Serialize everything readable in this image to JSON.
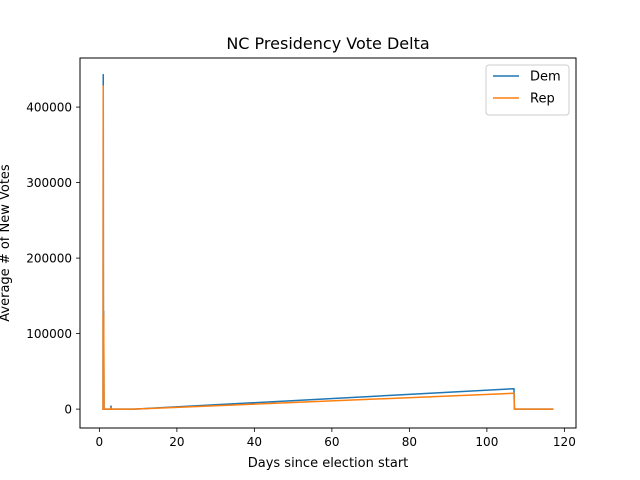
{
  "chart_data": {
    "type": "line",
    "title": "NC Presidency Vote Delta",
    "xlabel": "Days since election start",
    "ylabel": "Average # of New Votes",
    "xlim": [
      -5,
      123
    ],
    "ylim": [
      -25000,
      465000
    ],
    "xticks": [
      0,
      20,
      40,
      60,
      80,
      100,
      120
    ],
    "yticks": [
      0,
      100000,
      200000,
      300000,
      400000
    ],
    "legend_position": "top-right",
    "grid": false,
    "series": [
      {
        "name": "Dem",
        "color": "#1f77b4",
        "points": [
          [
            0.95,
            0
          ],
          [
            1.0,
            443000
          ],
          [
            1.05,
            5000
          ],
          [
            1.1,
            130000
          ],
          [
            1.2,
            0
          ],
          [
            2.0,
            0
          ],
          [
            2.9,
            0
          ],
          [
            3.0,
            4000
          ],
          [
            3.1,
            0
          ],
          [
            4.0,
            0
          ],
          [
            5.5,
            0
          ],
          [
            9.0,
            0
          ],
          [
            107.0,
            27000
          ],
          [
            107.1,
            0
          ],
          [
            117.0,
            0
          ]
        ]
      },
      {
        "name": "Rep",
        "color": "#ff7f0e",
        "points": [
          [
            0.95,
            0
          ],
          [
            1.0,
            428000
          ],
          [
            1.05,
            2000
          ],
          [
            1.1,
            125000
          ],
          [
            1.2,
            0
          ],
          [
            2.0,
            0
          ],
          [
            2.9,
            0
          ],
          [
            3.0,
            2000
          ],
          [
            3.1,
            0
          ],
          [
            4.0,
            0
          ],
          [
            5.5,
            0
          ],
          [
            9.0,
            0
          ],
          [
            107.0,
            21000
          ],
          [
            107.1,
            0
          ],
          [
            117.0,
            0
          ]
        ]
      }
    ]
  }
}
